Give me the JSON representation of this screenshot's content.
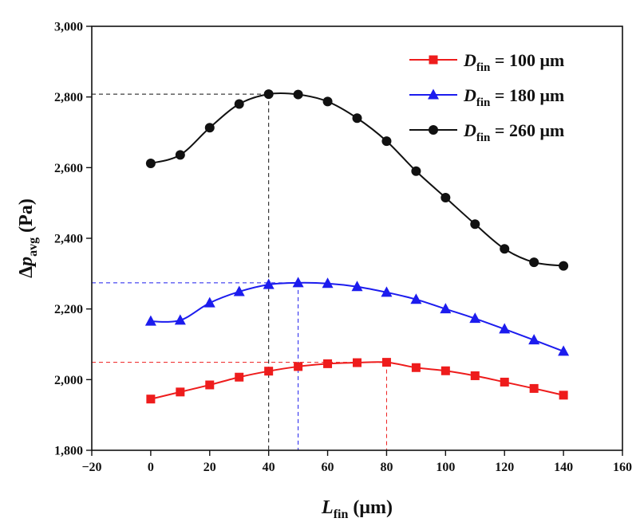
{
  "chart_data": {
    "type": "line",
    "title": "",
    "xlabel": {
      "main": "L",
      "sub": "fin",
      "unit": " (μm)"
    },
    "ylabel": {
      "prefix": "Δ",
      "main": "p",
      "sub": "avg",
      "unit": " (Pa)"
    },
    "xlim": [
      -20,
      160
    ],
    "ylim": [
      1800,
      3000
    ],
    "xticks": [
      -20,
      0,
      20,
      40,
      60,
      80,
      100,
      120,
      140,
      160
    ],
    "yticks": [
      1800,
      2000,
      2200,
      2400,
      2600,
      2800,
      3000
    ],
    "ytick_labels": [
      "1,800",
      "2,000",
      "2,200",
      "2,400",
      "2,600",
      "2,800",
      "3,000"
    ],
    "x": [
      0,
      10,
      20,
      30,
      40,
      50,
      60,
      70,
      80,
      90,
      100,
      110,
      120,
      130,
      140
    ],
    "series": [
      {
        "name": "D_fin = 100 μm",
        "label_main": "D",
        "label_sub": "fin",
        "label_rest": " = 100 μm",
        "color": "#ee1c1c",
        "marker": "square",
        "values": [
          1945,
          1965,
          1985,
          2007,
          2024,
          2037,
          2045,
          2048,
          2049,
          2034,
          2025,
          2011,
          1993,
          1975,
          1956
        ],
        "guide": {
          "x": 80,
          "y": 2049
        }
      },
      {
        "name": "D_fin = 180 μm",
        "label_main": "D",
        "label_sub": "fin",
        "label_rest": " = 180 μm",
        "color": "#1c1cee",
        "marker": "triangle",
        "values": [
          2165,
          2168,
          2217,
          2249,
          2269,
          2274,
          2272,
          2263,
          2247,
          2227,
          2200,
          2173,
          2143,
          2112,
          2080
        ],
        "guide": {
          "x": 50,
          "y": 2274
        }
      },
      {
        "name": "D_fin = 260 μm",
        "label_main": "D",
        "label_sub": "fin",
        "label_rest": " = 260 μm",
        "color": "#111111",
        "marker": "circle",
        "values": [
          2612,
          2636,
          2713,
          2780,
          2808,
          2807,
          2787,
          2740,
          2675,
          2590,
          2515,
          2440,
          2370,
          2332,
          2322
        ],
        "guide": {
          "x": 40,
          "y": 2808
        }
      }
    ],
    "legend_position": "top-right"
  }
}
